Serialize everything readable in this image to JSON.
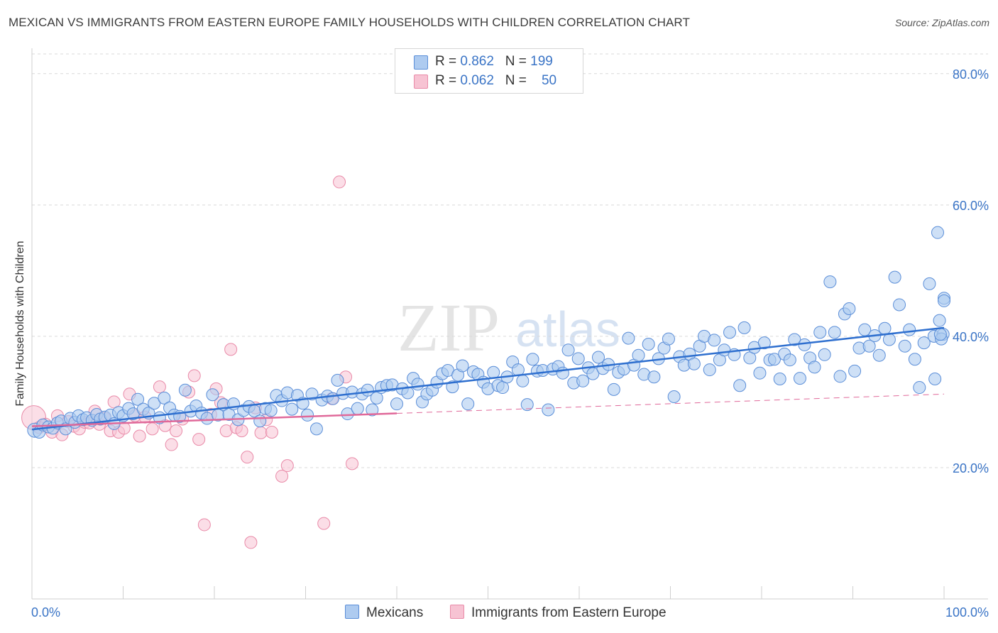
{
  "header": {
    "title": "MEXICAN VS IMMIGRANTS FROM EASTERN EUROPE FAMILY HOUSEHOLDS WITH CHILDREN CORRELATION CHART",
    "source": "Source: ZipAtlas.com"
  },
  "legend": {
    "rows": [
      {
        "r_label": "R = ",
        "r_value": "0.862",
        "n_label": "N = ",
        "n_value": "199"
      },
      {
        "r_label": "R = ",
        "r_value": "0.062",
        "n_label": "N = ",
        "n_value": "50"
      }
    ]
  },
  "bottom_legend": {
    "series1": "Mexicans",
    "series2": "Immigrants from Eastern Europe"
  },
  "watermark": {
    "zip": "ZIP",
    "atlas": "atlas"
  },
  "colors": {
    "blue_fill": "#aecbf0",
    "blue_stroke": "#5b8ed8",
    "blue_line": "#2e6fcf",
    "pink_fill": "#f7c3d3",
    "pink_stroke": "#e98aa8",
    "pink_line": "#e0699a",
    "axis_text": "#3a74c6",
    "grid": "#d9d9d9"
  },
  "chart_data": {
    "type": "scatter",
    "title": "MEXICAN VS IMMIGRANTS FROM EASTERN EUROPE FAMILY HOUSEHOLDS WITH CHILDREN CORRELATION CHART",
    "xlabel": "",
    "ylabel": "Family Households with Children",
    "xlim": [
      0,
      100
    ],
    "ylim": [
      0,
      83
    ],
    "x_tick_labels": {
      "min": "0.0%",
      "max": "100.0%"
    },
    "y_ticks": [
      {
        "value": 20,
        "label": "20.0%"
      },
      {
        "value": 40,
        "label": "40.0%"
      },
      {
        "value": 60,
        "label": "60.0%"
      },
      {
        "value": 80,
        "label": "80.0%"
      }
    ],
    "grid": true,
    "series": [
      {
        "name": "Mexicans",
        "R": 0.862,
        "N": 199,
        "trend": {
          "x1": 0,
          "y1": 25.8,
          "x2": 100,
          "y2": 41.3,
          "dashed_from": null
        },
        "points": [
          [
            0.3,
            25.7
          ],
          [
            0.8,
            25.4
          ],
          [
            1.2,
            26.5
          ],
          [
            1.8,
            26.2
          ],
          [
            2.3,
            26.0
          ],
          [
            2.8,
            26.8
          ],
          [
            3.2,
            27.1
          ],
          [
            3.7,
            25.9
          ],
          [
            4.2,
            27.5
          ],
          [
            4.7,
            26.9
          ],
          [
            5.1,
            27.9
          ],
          [
            5.6,
            27.3
          ],
          [
            6.0,
            27.6
          ],
          [
            6.6,
            27.2
          ],
          [
            7.1,
            28.1
          ],
          [
            7.5,
            27.4
          ],
          [
            8.0,
            27.7
          ],
          [
            8.6,
            28.0
          ],
          [
            9.0,
            26.7
          ],
          [
            9.5,
            28.4
          ],
          [
            10.0,
            27.9
          ],
          [
            10.6,
            29.0
          ],
          [
            11.1,
            28.2
          ],
          [
            11.6,
            30.4
          ],
          [
            12.2,
            28.9
          ],
          [
            12.8,
            28.3
          ],
          [
            13.4,
            29.8
          ],
          [
            14.0,
            27.6
          ],
          [
            14.5,
            30.6
          ],
          [
            15.1,
            29.1
          ],
          [
            15.6,
            28.0
          ],
          [
            16.2,
            27.8
          ],
          [
            16.8,
            31.8
          ],
          [
            17.4,
            28.6
          ],
          [
            18.0,
            29.4
          ],
          [
            18.6,
            28.3
          ],
          [
            19.2,
            27.5
          ],
          [
            19.8,
            31.1
          ],
          [
            20.4,
            28.0
          ],
          [
            21.0,
            29.6
          ],
          [
            21.6,
            28.1
          ],
          [
            22.1,
            29.7
          ],
          [
            22.6,
            27.3
          ],
          [
            23.2,
            28.7
          ],
          [
            23.8,
            29.3
          ],
          [
            24.4,
            28.6
          ],
          [
            25.0,
            27.1
          ],
          [
            25.6,
            29.0
          ],
          [
            26.2,
            28.7
          ],
          [
            26.8,
            31.0
          ],
          [
            27.4,
            30.2
          ],
          [
            28.0,
            31.4
          ],
          [
            28.5,
            28.9
          ],
          [
            29.1,
            31.0
          ],
          [
            29.7,
            29.8
          ],
          [
            30.2,
            28.0
          ],
          [
            30.7,
            31.2
          ],
          [
            31.2,
            25.9
          ],
          [
            31.8,
            30.3
          ],
          [
            32.4,
            30.9
          ],
          [
            33.0,
            30.5
          ],
          [
            33.5,
            33.3
          ],
          [
            34.1,
            31.3
          ],
          [
            34.6,
            28.2
          ],
          [
            35.1,
            31.5
          ],
          [
            35.7,
            29.0
          ],
          [
            36.2,
            31.2
          ],
          [
            36.8,
            31.8
          ],
          [
            37.3,
            28.8
          ],
          [
            37.8,
            30.6
          ],
          [
            38.3,
            32.2
          ],
          [
            38.9,
            32.5
          ],
          [
            39.5,
            32.6
          ],
          [
            40.0,
            29.7
          ],
          [
            40.6,
            32.0
          ],
          [
            41.2,
            31.4
          ],
          [
            41.8,
            33.6
          ],
          [
            42.3,
            32.7
          ],
          [
            42.8,
            30.0
          ],
          [
            43.3,
            31.2
          ],
          [
            43.9,
            31.8
          ],
          [
            44.4,
            33.0
          ],
          [
            45.0,
            34.3
          ],
          [
            45.6,
            34.8
          ],
          [
            46.1,
            32.3
          ],
          [
            46.7,
            34.1
          ],
          [
            47.2,
            35.5
          ],
          [
            47.8,
            29.7
          ],
          [
            48.4,
            34.6
          ],
          [
            48.9,
            34.2
          ],
          [
            49.5,
            33.0
          ],
          [
            50.0,
            32.0
          ],
          [
            50.6,
            34.5
          ],
          [
            51.1,
            32.5
          ],
          [
            51.6,
            32.2
          ],
          [
            52.1,
            33.8
          ],
          [
            52.7,
            36.1
          ],
          [
            53.3,
            34.9
          ],
          [
            53.8,
            33.2
          ],
          [
            54.3,
            29.6
          ],
          [
            54.9,
            36.5
          ],
          [
            55.4,
            34.7
          ],
          [
            56.0,
            34.8
          ],
          [
            56.6,
            28.8
          ],
          [
            57.1,
            35.0
          ],
          [
            57.7,
            35.4
          ],
          [
            58.2,
            34.4
          ],
          [
            58.8,
            37.9
          ],
          [
            59.4,
            32.9
          ],
          [
            59.9,
            36.6
          ],
          [
            60.4,
            33.2
          ],
          [
            61.0,
            35.2
          ],
          [
            61.5,
            34.3
          ],
          [
            62.1,
            36.8
          ],
          [
            62.6,
            35.1
          ],
          [
            63.2,
            35.7
          ],
          [
            63.8,
            31.9
          ],
          [
            64.3,
            34.5
          ],
          [
            64.9,
            35.0
          ],
          [
            65.4,
            39.7
          ],
          [
            66.0,
            35.6
          ],
          [
            66.5,
            37.1
          ],
          [
            67.1,
            34.2
          ],
          [
            67.6,
            38.8
          ],
          [
            68.2,
            33.8
          ],
          [
            68.7,
            36.6
          ],
          [
            69.3,
            38.2
          ],
          [
            69.8,
            39.6
          ],
          [
            70.4,
            30.8
          ],
          [
            71.0,
            36.9
          ],
          [
            71.5,
            35.6
          ],
          [
            72.1,
            37.3
          ],
          [
            72.6,
            35.8
          ],
          [
            73.2,
            38.5
          ],
          [
            73.7,
            40.0
          ],
          [
            74.3,
            34.9
          ],
          [
            74.8,
            39.4
          ],
          [
            75.4,
            36.4
          ],
          [
            75.9,
            37.9
          ],
          [
            76.5,
            40.6
          ],
          [
            77.0,
            37.2
          ],
          [
            77.6,
            32.5
          ],
          [
            78.1,
            41.3
          ],
          [
            78.7,
            36.7
          ],
          [
            79.2,
            38.3
          ],
          [
            79.8,
            34.4
          ],
          [
            80.3,
            39.0
          ],
          [
            80.9,
            36.4
          ],
          [
            81.4,
            36.5
          ],
          [
            82.0,
            33.5
          ],
          [
            82.5,
            37.3
          ],
          [
            83.1,
            36.4
          ],
          [
            83.6,
            39.5
          ],
          [
            84.2,
            33.6
          ],
          [
            84.7,
            38.7
          ],
          [
            85.3,
            36.7
          ],
          [
            85.8,
            35.3
          ],
          [
            86.4,
            40.6
          ],
          [
            86.9,
            37.2
          ],
          [
            87.5,
            48.3
          ],
          [
            88.0,
            40.6
          ],
          [
            88.6,
            33.9
          ],
          [
            89.1,
            43.4
          ],
          [
            89.6,
            44.2
          ],
          [
            90.2,
            34.7
          ],
          [
            90.7,
            38.2
          ],
          [
            91.3,
            41.0
          ],
          [
            91.8,
            38.5
          ],
          [
            92.4,
            40.1
          ],
          [
            92.9,
            37.1
          ],
          [
            93.5,
            41.2
          ],
          [
            94.0,
            39.5
          ],
          [
            94.6,
            49.0
          ],
          [
            95.1,
            44.8
          ],
          [
            95.7,
            38.5
          ],
          [
            96.2,
            41.0
          ],
          [
            96.8,
            36.5
          ],
          [
            97.3,
            32.2
          ],
          [
            97.8,
            39.0
          ],
          [
            98.4,
            48.0
          ],
          [
            98.9,
            40.0
          ],
          [
            99.5,
            42.4
          ],
          [
            99.0,
            33.5
          ],
          [
            99.3,
            55.8
          ],
          [
            100.0,
            45.8
          ],
          [
            99.9,
            40.3
          ],
          [
            100.0,
            45.4
          ],
          [
            99.7,
            39.6
          ],
          [
            99.6,
            40.3
          ]
        ]
      },
      {
        "name": "Immigrants from Eastern Europe",
        "R": 0.062,
        "N": 50,
        "trend": {
          "x1": 0,
          "y1": 26.3,
          "x2": 100,
          "y2": 31.2,
          "solid_until_x": 40
        },
        "points": [
          [
            0.2,
            27.6
          ],
          [
            0.8,
            26.1
          ],
          [
            1.5,
            26.6
          ],
          [
            2.2,
            25.4
          ],
          [
            2.8,
            27.9
          ],
          [
            3.3,
            25.0
          ],
          [
            4.0,
            27.0
          ],
          [
            4.6,
            26.3
          ],
          [
            5.2,
            25.9
          ],
          [
            5.8,
            26.9
          ],
          [
            6.3,
            26.8
          ],
          [
            6.9,
            28.6
          ],
          [
            7.4,
            26.6
          ],
          [
            8.0,
            27.5
          ],
          [
            8.6,
            25.6
          ],
          [
            9.0,
            30.0
          ],
          [
            9.5,
            25.4
          ],
          [
            10.1,
            26.0
          ],
          [
            10.7,
            31.2
          ],
          [
            11.3,
            27.9
          ],
          [
            11.8,
            24.8
          ],
          [
            12.4,
            27.7
          ],
          [
            13.2,
            25.9
          ],
          [
            14.0,
            32.3
          ],
          [
            14.6,
            26.4
          ],
          [
            15.3,
            23.5
          ],
          [
            15.8,
            25.6
          ],
          [
            16.5,
            27.4
          ],
          [
            17.2,
            31.5
          ],
          [
            17.8,
            34.0
          ],
          [
            18.3,
            24.3
          ],
          [
            18.9,
            11.3
          ],
          [
            19.6,
            28.1
          ],
          [
            20.2,
            32.0
          ],
          [
            20.7,
            29.9
          ],
          [
            21.3,
            25.6
          ],
          [
            21.8,
            38.0
          ],
          [
            22.4,
            26.1
          ],
          [
            23.0,
            25.6
          ],
          [
            23.6,
            21.6
          ],
          [
            24.0,
            8.6
          ],
          [
            24.5,
            29.1
          ],
          [
            25.1,
            25.3
          ],
          [
            25.7,
            27.3
          ],
          [
            26.3,
            25.4
          ],
          [
            27.4,
            18.7
          ],
          [
            28.0,
            20.3
          ],
          [
            32.0,
            11.5
          ],
          [
            32.9,
            30.5
          ],
          [
            33.7,
            63.5
          ],
          [
            34.4,
            33.8
          ],
          [
            35.1,
            20.6
          ]
        ]
      }
    ]
  }
}
